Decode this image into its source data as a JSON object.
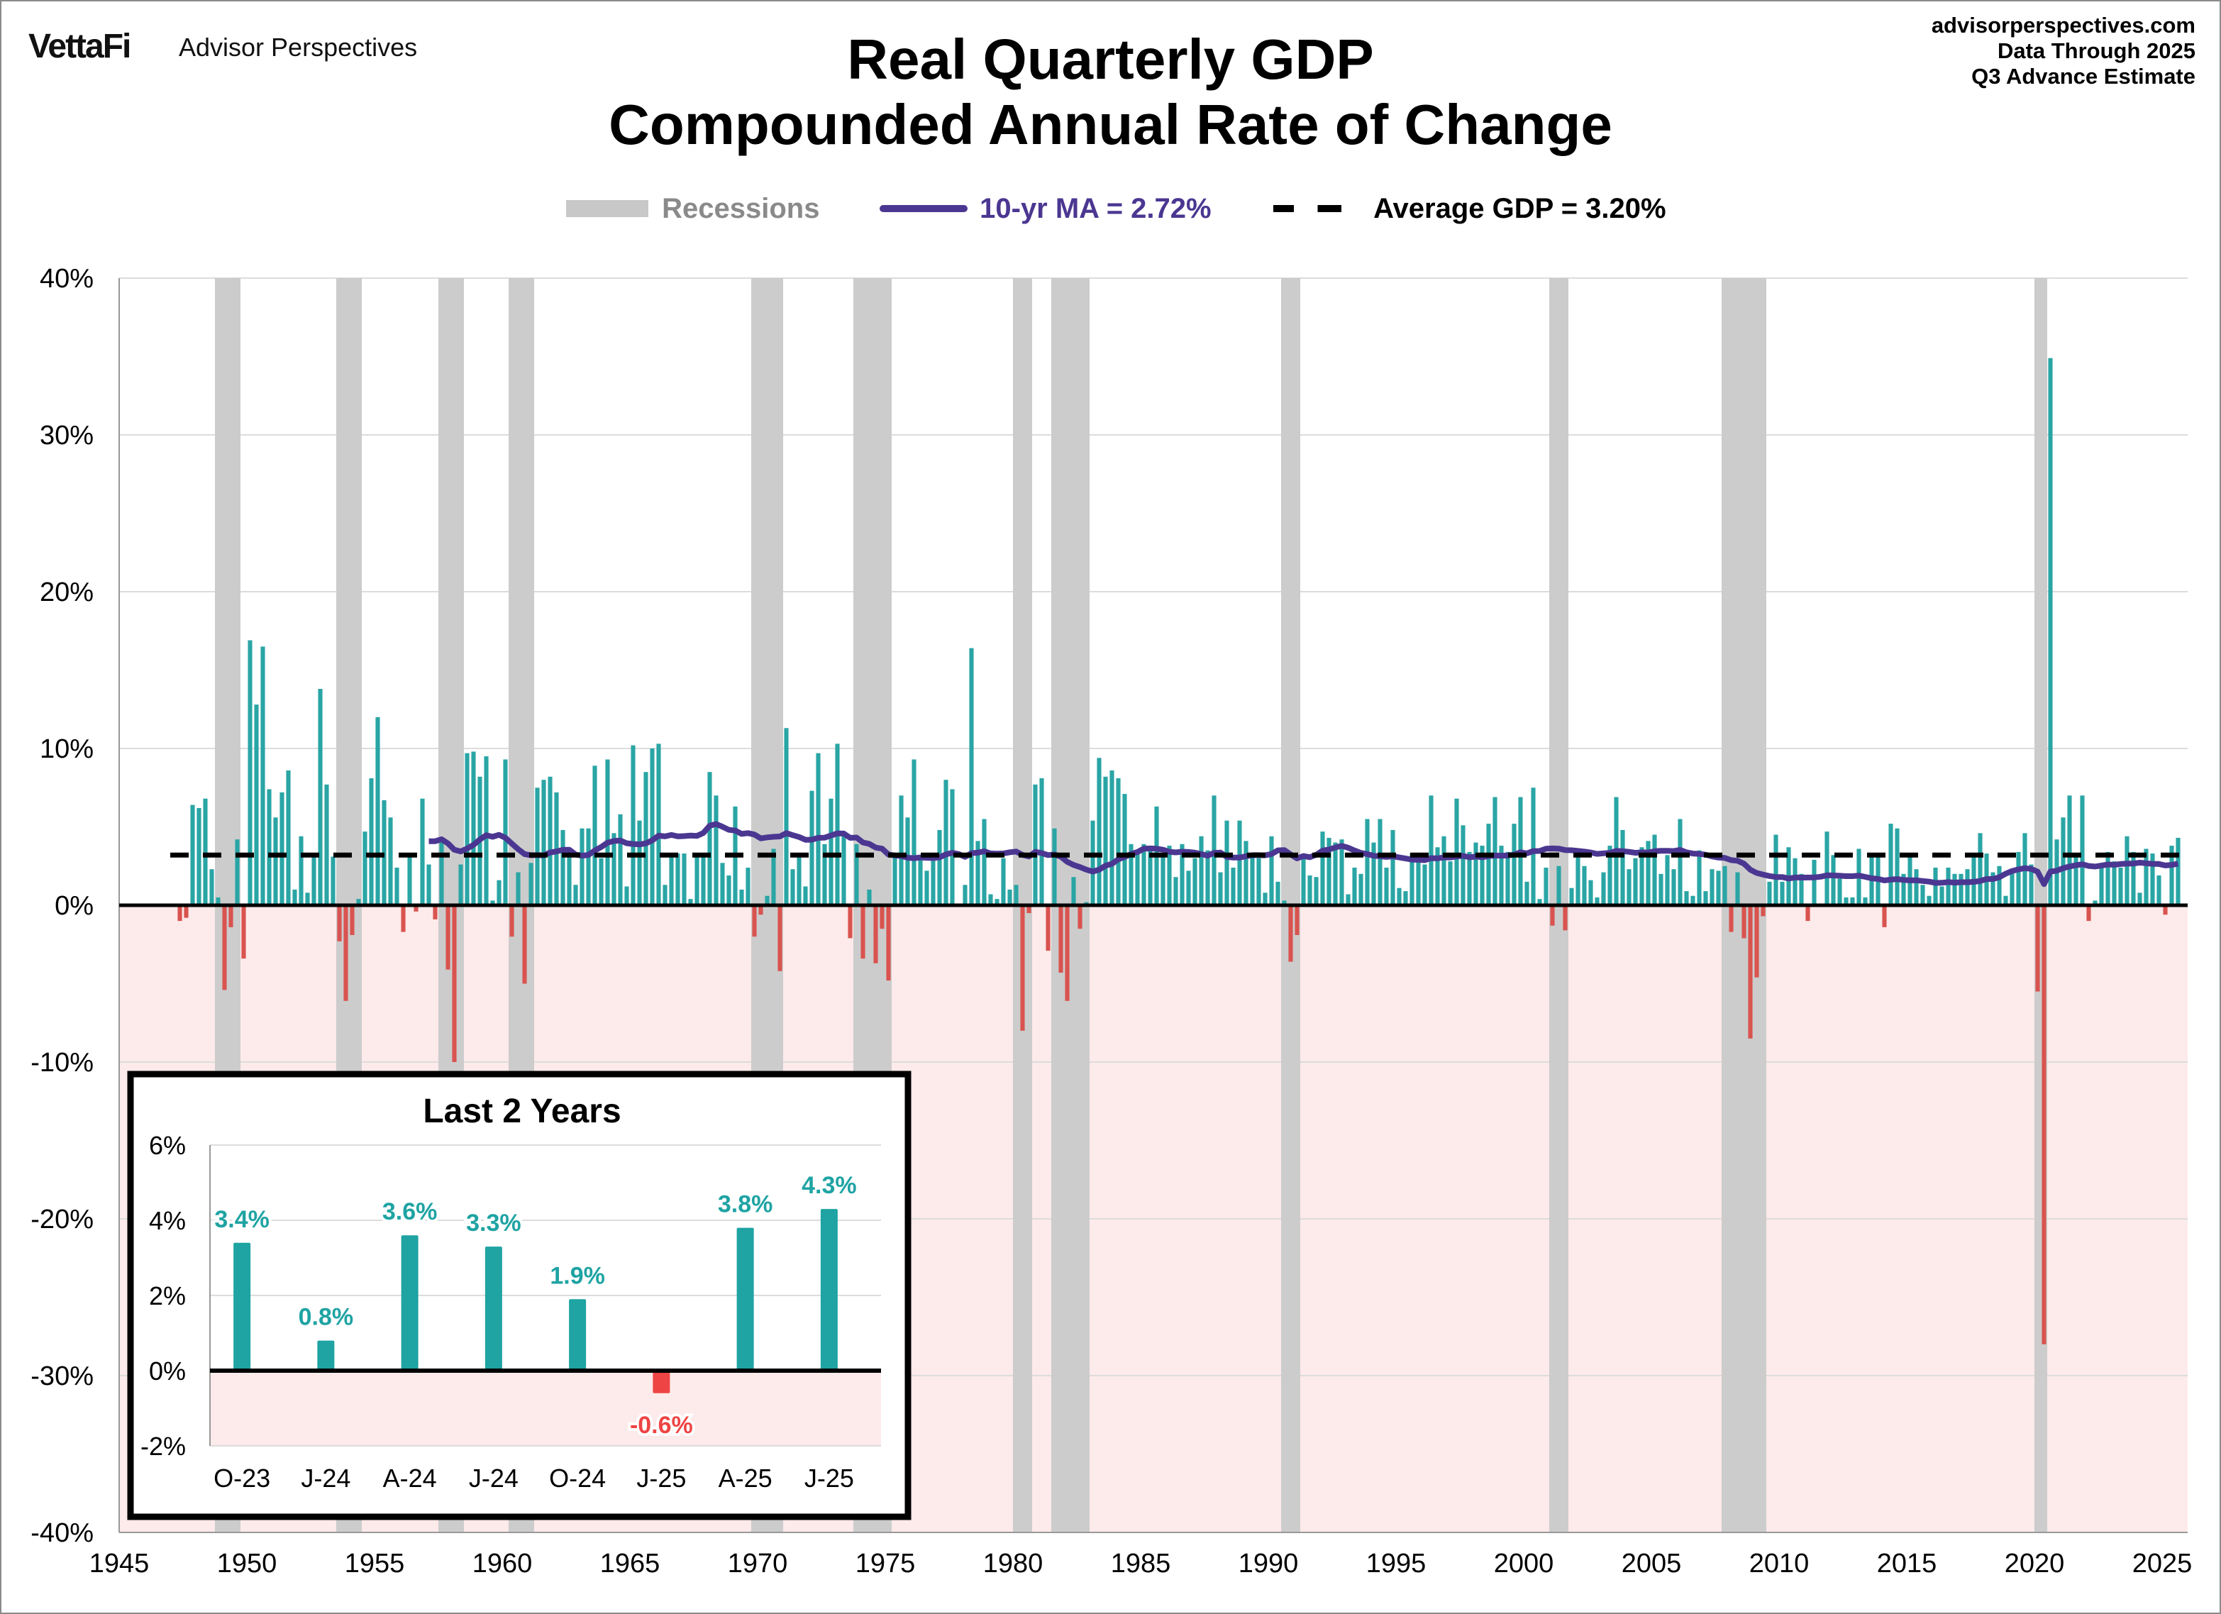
{
  "header": {
    "logo": "VettaFi",
    "brand": "Advisor Perspectives",
    "title_line1": "Real Quarterly GDP",
    "title_line2": "Compounded Annual Rate of Change",
    "site": "advisorperspectives.com",
    "data_through": "Data Through 2025",
    "estimate": "Q3 Advance Estimate"
  },
  "legend": {
    "recessions": "Recessions",
    "ma": "10-yr MA = 2.72%",
    "average": "Average GDP = 3.20%"
  },
  "colors": {
    "positive": "#2aa5a5",
    "negative": "#d9534f",
    "ma": "#4b3791",
    "recession": "#cccccc",
    "negative_zone": "#fdeaea",
    "inset_negative": "#ee4444"
  },
  "chart_data": [
    {
      "type": "bar",
      "title": "Real Quarterly GDP Compounded Annual Rate of Change",
      "frequency": "quarterly",
      "start": "1947 Q2",
      "ylim": [
        -40,
        40
      ],
      "xlim": [
        1945,
        2026
      ],
      "y_ticks": [
        "40%",
        "30%",
        "20%",
        "10%",
        "0%",
        "-10%",
        "-20%",
        "-30%",
        "-40%"
      ],
      "y_tick_values": [
        40,
        30,
        20,
        10,
        0,
        -10,
        -20,
        -30,
        -40
      ],
      "x_ticks": [
        "1945",
        "1950",
        "1955",
        "1960",
        "1965",
        "1970",
        "1975",
        "1980",
        "1985",
        "1990",
        "1995",
        "2000",
        "2005",
        "2010",
        "2015",
        "2020",
        "2025"
      ],
      "grid": true,
      "average": 3.2,
      "ma_window_years": 10,
      "ma_latest": 2.72,
      "recessions": [
        [
          1948.75,
          1949.75
        ],
        [
          1953.5,
          1954.5
        ],
        [
          1957.5,
          1958.5
        ],
        [
          1960.25,
          1961.25
        ],
        [
          1969.75,
          1971.0
        ],
        [
          1973.75,
          1975.25
        ],
        [
          1980.0,
          1980.75
        ],
        [
          1981.5,
          1983.0
        ],
        [
          1990.5,
          1991.25
        ],
        [
          2001.0,
          2001.75
        ],
        [
          2007.75,
          2009.5
        ],
        [
          2020.0,
          2020.5
        ]
      ],
      "values": [
        -1.0,
        -0.8,
        6.4,
        6.2,
        6.8,
        2.3,
        0.5,
        -5.4,
        -1.4,
        4.2,
        -3.4,
        16.9,
        12.8,
        16.5,
        7.4,
        5.6,
        7.2,
        8.6,
        1.0,
        4.4,
        0.8,
        3.1,
        13.8,
        7.7,
        3.1,
        -2.3,
        -6.1,
        -1.9,
        0.4,
        4.7,
        8.1,
        12.0,
        6.7,
        5.6,
        2.4,
        -1.7,
        3.2,
        -0.4,
        6.8,
        2.6,
        -0.9,
        4.0,
        -4.1,
        -10.0,
        2.6,
        9.7,
        9.8,
        8.2,
        9.5,
        0.3,
        1.6,
        9.3,
        -2.0,
        2.1,
        -5.0,
        2.7,
        7.5,
        8.0,
        8.2,
        7.2,
        4.8,
        3.6,
        1.3,
        4.9,
        4.9,
        8.9,
        3.0,
        9.3,
        4.6,
        5.8,
        1.2,
        10.2,
        5.4,
        8.5,
        10.0,
        10.3,
        1.3,
        3.2,
        3.3,
        3.3,
        0.4,
        3.3,
        3.2,
        8.5,
        7.0,
        2.7,
        1.9,
        6.3,
        1.0,
        2.4,
        -2.0,
        -0.6,
        0.6,
        3.6,
        -4.2,
        11.3,
        2.3,
        3.2,
        1.2,
        7.3,
        9.7,
        3.9,
        6.8,
        10.3,
        4.6,
        -2.1,
        3.9,
        -3.4,
        1.0,
        -3.7,
        -1.5,
        -4.8,
        3.1,
        7.0,
        5.6,
        9.3,
        3.1,
        2.2,
        2.9,
        4.8,
        8.0,
        7.4,
        0.0,
        1.3,
        16.4,
        4.1,
        5.5,
        0.7,
        0.4,
        3.0,
        1.0,
        1.3,
        -8.0,
        -0.5,
        7.7,
        8.1,
        -2.9,
        4.9,
        -4.3,
        -6.1,
        1.8,
        -1.5,
        0.2,
        5.4,
        9.4,
        8.2,
        8.6,
        8.1,
        7.1,
        3.9,
        3.3,
        3.9,
        3.6,
        6.3,
        3.1,
        3.8,
        1.8,
        3.9,
        2.2,
        3.0,
        4.4,
        3.5,
        7.0,
        2.1,
        5.4,
        2.4,
        5.4,
        4.1,
        3.1,
        3.0,
        0.8,
        4.4,
        1.5,
        0.3,
        -3.6,
        -1.9,
        3.1,
        1.9,
        1.8,
        4.7,
        4.3,
        4.0,
        4.2,
        0.7,
        2.4,
        2.0,
        5.5,
        4.0,
        5.5,
        2.4,
        4.8,
        1.1,
        0.9,
        3.3,
        2.9,
        2.6,
        7.0,
        3.7,
        4.4,
        2.8,
        6.8,
        5.1,
        3.4,
        4.0,
        3.8,
        5.2,
        6.9,
        3.8,
        3.4,
        5.2,
        6.9,
        1.5,
        7.5,
        0.4,
        2.4,
        -1.3,
        2.5,
        -1.6,
        1.1,
        3.4,
        2.5,
        1.6,
        0.5,
        2.1,
        3.8,
        6.9,
        4.8,
        2.3,
        3.0,
        3.7,
        4.1,
        4.5,
        2.0,
        3.2,
        2.3,
        5.5,
        0.9,
        0.6,
        3.5,
        0.9,
        2.3,
        2.2,
        2.5,
        -1.7,
        2.1,
        -2.1,
        -8.5,
        -4.6,
        -0.7,
        1.5,
        4.5,
        1.5,
        3.7,
        3.0,
        2.0,
        -1.0,
        2.9,
        -0.1,
        4.7,
        3.2,
        1.7,
        0.5,
        0.5,
        3.6,
        0.5,
        3.2,
        3.2,
        -1.4,
        5.2,
        4.9,
        2.0,
        3.3,
        2.3,
        1.3,
        0.6,
        2.4,
        1.2,
        2.4,
        2.0,
        2.0,
        2.3,
        3.2,
        4.6,
        3.3,
        2.1,
        2.5,
        0.6,
        2.2,
        3.4,
        4.6,
        2.6,
        -5.5,
        -28.0,
        34.9,
        4.2,
        5.6,
        7.0,
        3.3,
        7.0,
        -1.0,
        0.3,
        2.7,
        3.4,
        2.8,
        2.4,
        4.4,
        3.4,
        0.8,
        3.6,
        3.3,
        1.9,
        -0.6,
        3.8,
        4.3
      ]
    },
    {
      "type": "bar",
      "title": "Last 2 Years",
      "categories": [
        "O-23",
        "J-24",
        "A-24",
        "J-24",
        "O-24",
        "J-25",
        "A-25",
        "J-25"
      ],
      "values": [
        3.4,
        0.8,
        3.6,
        3.3,
        1.9,
        -0.6,
        3.8,
        4.3
      ],
      "data_labels": [
        "3.4%",
        "0.8%",
        "3.6%",
        "3.3%",
        "1.9%",
        "-0.6%",
        "3.8%",
        "4.3%"
      ],
      "ylim": [
        -2,
        6
      ],
      "y_ticks": [
        "6%",
        "4%",
        "2%",
        "0%",
        "-2%"
      ],
      "y_tick_values": [
        6,
        4,
        2,
        0,
        -2
      ],
      "grid": true
    }
  ]
}
